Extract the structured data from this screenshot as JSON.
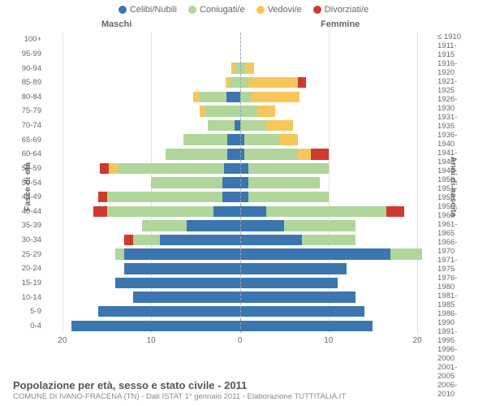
{
  "legend": [
    {
      "label": "Celibi/Nubili",
      "color": "#3b76b0"
    },
    {
      "label": "Coniugati/e",
      "color": "#b0d69a"
    },
    {
      "label": "Vedovi/e",
      "color": "#f7c65b"
    },
    {
      "label": "Divorziati/e",
      "color": "#d03a2e"
    }
  ],
  "side_labels": {
    "male": "Maschi",
    "female": "Femmine"
  },
  "y_axis_left_label": "Fasce di età",
  "y_axis_right_label": "Anni di nascita",
  "x_max": 22,
  "x_ticks_male": [
    20,
    10,
    0
  ],
  "x_ticks_female": [
    0,
    10,
    20
  ],
  "age_bands": [
    "100+",
    "95-99",
    "90-94",
    "85-89",
    "80-84",
    "75-79",
    "70-74",
    "65-69",
    "60-64",
    "55-59",
    "50-54",
    "45-49",
    "40-44",
    "35-39",
    "30-34",
    "25-29",
    "20-24",
    "15-19",
    "10-14",
    "5-9",
    "0-4"
  ],
  "birth_years": [
    "≤ 1910",
    "1911-1915",
    "1916-1920",
    "1921-1925",
    "1926-1930",
    "1931-1935",
    "1936-1940",
    "1941-1945",
    "1946-1950",
    "1951-1955",
    "1956-1960",
    "1961-1965",
    "1966-1970",
    "1971-1975",
    "1976-1980",
    "1981-1985",
    "1986-1990",
    "1991-1995",
    "1996-2000",
    "2001-2005",
    "2006-2010"
  ],
  "rows": [
    {
      "m": [
        0,
        0,
        0,
        0
      ],
      "f": [
        0,
        0,
        0,
        0
      ]
    },
    {
      "m": [
        0,
        0,
        0,
        0
      ],
      "f": [
        0,
        0,
        0,
        0
      ]
    },
    {
      "m": [
        0,
        0.6,
        0.4,
        0
      ],
      "f": [
        0,
        0.6,
        1.0,
        0
      ]
    },
    {
      "m": [
        0,
        1.2,
        0.4,
        0
      ],
      "f": [
        0,
        1.0,
        5.5,
        1.0
      ]
    },
    {
      "m": [
        1.5,
        3.0,
        0.8,
        0
      ],
      "f": [
        0,
        1.2,
        5.5,
        0
      ]
    },
    {
      "m": [
        0,
        4.0,
        0.5,
        0
      ],
      "f": [
        0,
        2.0,
        2.0,
        0
      ]
    },
    {
      "m": [
        0.6,
        3.0,
        0,
        0
      ],
      "f": [
        0,
        3.0,
        3.0,
        0
      ]
    },
    {
      "m": [
        1.4,
        5.0,
        0,
        0
      ],
      "f": [
        0.5,
        4.0,
        2.0,
        0
      ]
    },
    {
      "m": [
        1.4,
        7.0,
        0,
        0
      ],
      "f": [
        0.5,
        6.0,
        1.5,
        2.0
      ]
    },
    {
      "m": [
        1.8,
        12.0,
        1.0,
        1.0
      ],
      "f": [
        1.0,
        9.0,
        0,
        0
      ]
    },
    {
      "m": [
        2.0,
        8.0,
        0,
        0
      ],
      "f": [
        1.0,
        8.0,
        0,
        0
      ]
    },
    {
      "m": [
        2.0,
        13.0,
        0,
        1.0
      ],
      "f": [
        1.0,
        9.0,
        0,
        0
      ]
    },
    {
      "m": [
        3.0,
        12.0,
        0,
        1.5
      ],
      "f": [
        3.0,
        13.5,
        0,
        2.0
      ]
    },
    {
      "m": [
        6.0,
        5.0,
        0,
        0
      ],
      "f": [
        5.0,
        8.0,
        0,
        0
      ]
    },
    {
      "m": [
        9.0,
        3.0,
        0,
        1.0
      ],
      "f": [
        7.0,
        6.0,
        0,
        0
      ]
    },
    {
      "m": [
        13.0,
        1.0,
        0,
        0
      ],
      "f": [
        17.0,
        3.5,
        0,
        0
      ]
    },
    {
      "m": [
        13.0,
        0,
        0,
        0
      ],
      "f": [
        12.0,
        0,
        0,
        0
      ]
    },
    {
      "m": [
        14.0,
        0,
        0,
        0
      ],
      "f": [
        11.0,
        0,
        0,
        0
      ]
    },
    {
      "m": [
        12.0,
        0,
        0,
        0
      ],
      "f": [
        13.0,
        0,
        0,
        0
      ]
    },
    {
      "m": [
        16.0,
        0,
        0,
        0
      ],
      "f": [
        14.0,
        0,
        0,
        0
      ]
    },
    {
      "m": [
        19.0,
        0,
        0,
        0
      ],
      "f": [
        15.0,
        0,
        0,
        0
      ]
    }
  ],
  "grid_color": "#e0e0e0",
  "center_line_color": "#9aa4b2",
  "background_color": "#ffffff",
  "footer": {
    "title": "Popolazione per età, sesso e stato civile - 2011",
    "subtitle": "COMUNE DI IVANO-FRACENA (TN) - Dati ISTAT 1° gennaio 2011 - Elaborazione TUTTITALIA.IT"
  }
}
